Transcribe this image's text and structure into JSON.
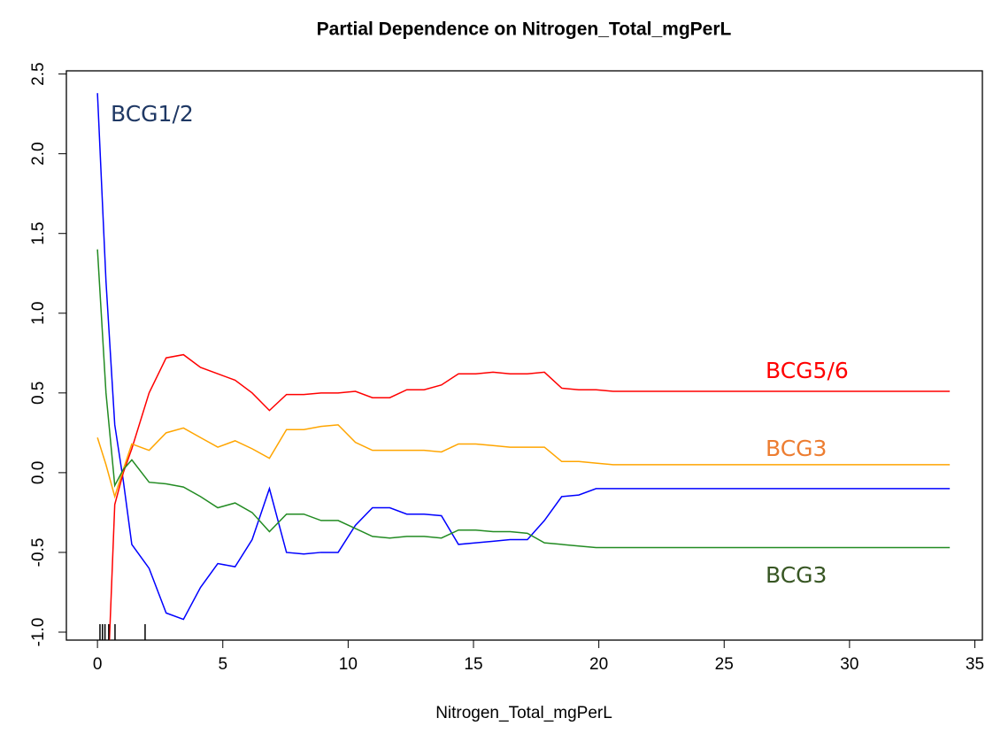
{
  "chart_data": {
    "type": "line",
    "title": "Partial Dependence on Nitrogen_Total_mgPerL",
    "x_label": "Nitrogen_Total_mgPerL",
    "x": [
      0,
      0.34,
      0.69,
      1.03,
      1.37,
      2.06,
      2.74,
      3.43,
      4.11,
      4.8,
      5.49,
      6.17,
      6.86,
      7.54,
      8.23,
      8.92,
      9.6,
      10.29,
      10.97,
      11.66,
      12.34,
      13.03,
      13.72,
      14.4,
      15.09,
      15.78,
      16.46,
      17.15,
      17.83,
      18.52,
      19.2,
      19.89,
      20.57,
      34
    ],
    "series": [
      {
        "name": "BCG1/2",
        "color": "#0000ff",
        "label_color": "#1f3864",
        "values": [
          2.38,
          1.2,
          0.3,
          -0.05,
          -0.45,
          -0.6,
          -0.88,
          -0.92,
          -0.72,
          -0.57,
          -0.59,
          -0.42,
          -0.1,
          -0.5,
          -0.51,
          -0.5,
          -0.5,
          -0.33,
          -0.22,
          -0.22,
          -0.26,
          -0.26,
          -0.27,
          -0.45,
          -0.44,
          -0.43,
          -0.42,
          -0.42,
          -0.3,
          -0.15,
          -0.14,
          -0.1,
          -0.1,
          -0.1
        ]
      },
      {
        "name": "BCG5/6",
        "color": "#ff0000",
        "label_color": "#ff0000",
        "values": [
          null,
          -1.6,
          -0.2,
          0.0,
          0.15,
          0.5,
          0.72,
          0.74,
          0.66,
          0.62,
          0.58,
          0.5,
          0.39,
          0.49,
          0.49,
          0.5,
          0.5,
          0.51,
          0.47,
          0.47,
          0.52,
          0.52,
          0.55,
          0.62,
          0.62,
          0.63,
          0.62,
          0.62,
          0.63,
          0.53,
          0.52,
          0.52,
          0.51,
          0.51
        ]
      },
      {
        "name": "BCG3",
        "color": "#ffa500",
        "label_color": "#ed7d31",
        "values": [
          0.22,
          0.05,
          -0.15,
          0.02,
          0.18,
          0.14,
          0.25,
          0.28,
          0.22,
          0.16,
          0.2,
          0.15,
          0.09,
          0.27,
          0.27,
          0.29,
          0.3,
          0.19,
          0.14,
          0.14,
          0.14,
          0.14,
          0.13,
          0.18,
          0.18,
          0.17,
          0.16,
          0.16,
          0.16,
          0.07,
          0.07,
          0.06,
          0.05,
          0.05
        ]
      },
      {
        "name": "BCG3",
        "color": "#228b22",
        "label_color": "#375623",
        "values": [
          1.4,
          0.5,
          -0.08,
          0.02,
          0.08,
          -0.06,
          -0.07,
          -0.09,
          -0.15,
          -0.22,
          -0.19,
          -0.25,
          -0.37,
          -0.26,
          -0.26,
          -0.3,
          -0.3,
          -0.35,
          -0.4,
          -0.41,
          -0.4,
          -0.4,
          -0.41,
          -0.36,
          -0.36,
          -0.37,
          -0.37,
          -0.38,
          -0.44,
          -0.45,
          -0.46,
          -0.47,
          -0.47,
          -0.47
        ]
      }
    ],
    "rug": [
      0.1,
      0.2,
      0.3,
      0.45,
      0.7,
      1.9
    ],
    "xlim": [
      -1.24,
      35.3
    ],
    "ylim": [
      -1.05,
      2.52
    ],
    "xticks": [
      0,
      5,
      10,
      15,
      20,
      25,
      30,
      35
    ],
    "yticks": [
      {
        "value": -1,
        "label": "-1.0"
      },
      -0.5,
      {
        "value": 0,
        "label": "0.0"
      },
      0.5,
      {
        "value": 1,
        "label": "1.0"
      },
      1.5,
      {
        "value": 2,
        "label": "2.0"
      },
      2.5
    ]
  }
}
